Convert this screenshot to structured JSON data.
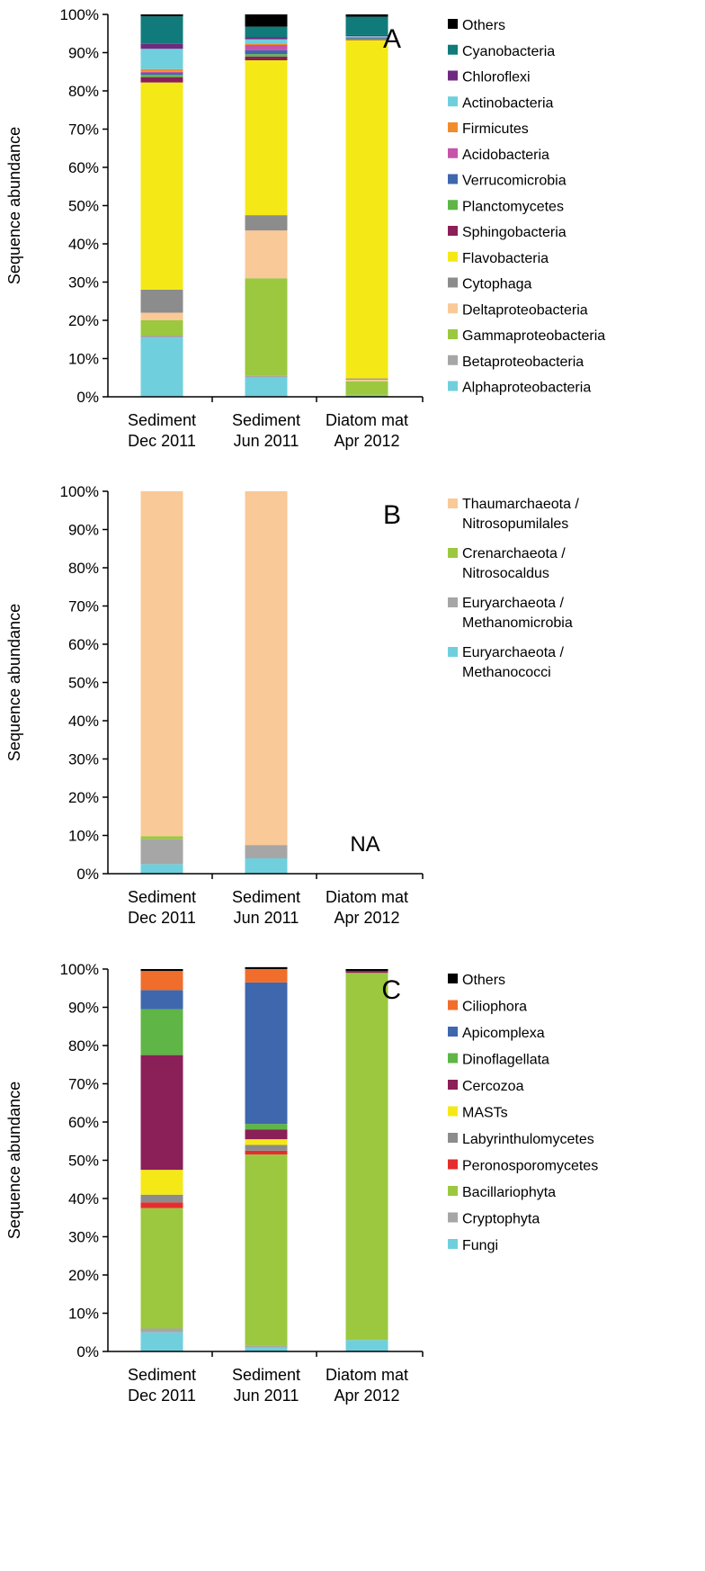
{
  "chart_data": [
    {
      "panel_id": "A",
      "type": "bar",
      "stacked": true,
      "ylabel": "Sequence abundance",
      "ylim": [
        0,
        100
      ],
      "y_ticks": [
        0,
        10,
        20,
        30,
        40,
        50,
        60,
        70,
        80,
        90,
        100
      ],
      "y_tick_suffix": "%",
      "categories": [
        [
          "Sediment",
          "Dec 2011"
        ],
        [
          "Sediment",
          "Jun 2011"
        ],
        [
          "Diatom mat",
          "Apr 2012"
        ]
      ],
      "series": [
        {
          "name": "Alphaproteobacteria",
          "color": "#6fcfdd",
          "values": [
            15.5,
            5,
            0.3
          ]
        },
        {
          "name": "Betaproteobacteria",
          "color": "#a6a6a6",
          "values": [
            0.5,
            0.5,
            0.2
          ]
        },
        {
          "name": "Gammaproteobacteria",
          "color": "#9bc83f",
          "values": [
            4,
            25.5,
            3.5
          ]
        },
        {
          "name": "Deltaproteobacteria",
          "color": "#f9c997",
          "values": [
            2,
            12.5,
            0.5
          ]
        },
        {
          "name": "Cytophaga",
          "color": "#8c8c8c",
          "values": [
            6,
            4,
            0.3
          ]
        },
        {
          "name": "Flavobacteria",
          "color": "#f4e917",
          "values": [
            54.2,
            40.5,
            88.5
          ]
        },
        {
          "name": "Sphingobacteria",
          "color": "#8b1f57",
          "values": [
            1.4,
            1,
            0.2
          ]
        },
        {
          "name": "Planctomycetes",
          "color": "#5fb546",
          "values": [
            0.6,
            0.6,
            0.2
          ]
        },
        {
          "name": "Verrucomicrobia",
          "color": "#3f67ad",
          "values": [
            0.5,
            1,
            0.2
          ]
        },
        {
          "name": "Acidobacteria",
          "color": "#c655a9",
          "values": [
            0.3,
            1.4,
            0.1
          ]
        },
        {
          "name": "Firmicutes",
          "color": "#f08c2c",
          "values": [
            0.7,
            0.4,
            0.1
          ]
        },
        {
          "name": "Actinobacteria",
          "color": "#6fcfdd",
          "values": [
            5.3,
            1.1,
            0.2
          ]
        },
        {
          "name": "Chloroflexi",
          "color": "#6f2a80",
          "values": [
            1.3,
            0.5,
            0.3
          ]
        },
        {
          "name": "Cyanobacteria",
          "color": "#117b7b",
          "values": [
            7.2,
            2.8,
            4.8
          ]
        },
        {
          "name": "Others",
          "color": "#000000",
          "values": [
            0.5,
            3.2,
            0.6
          ]
        }
      ]
    },
    {
      "panel_id": "B",
      "type": "bar",
      "stacked": true,
      "ylabel": "Sequence abundance",
      "ylim": [
        0,
        100
      ],
      "y_ticks": [
        0,
        10,
        20,
        30,
        40,
        50,
        60,
        70,
        80,
        90,
        100
      ],
      "y_tick_suffix": "%",
      "annotation": "NA",
      "categories": [
        [
          "Sediment",
          "Dec 2011"
        ],
        [
          "Sediment",
          "Jun 2011"
        ],
        [
          "Diatom mat",
          "Apr 2012"
        ]
      ],
      "series": [
        {
          "name": [
            "Euryarchaeota /",
            "Methanococci"
          ],
          "color": "#6fcfdd",
          "values": [
            2.5,
            4,
            0
          ]
        },
        {
          "name": [
            "Euryarchaeota /",
            "Methanomicrobia"
          ],
          "color": "#a6a6a6",
          "values": [
            6.5,
            3.5,
            0
          ]
        },
        {
          "name": [
            "Crenarchaeota /",
            "Nitrosocaldus"
          ],
          "color": "#9bc83f",
          "values": [
            0.8,
            0,
            0
          ]
        },
        {
          "name": [
            "Thaumarchaeota /",
            "Nitrosopumilales"
          ],
          "color": "#f9c997",
          "values": [
            90.2,
            92.5,
            0
          ]
        }
      ]
    },
    {
      "panel_id": "C",
      "type": "bar",
      "stacked": true,
      "ylabel": "Sequence abundance",
      "ylim": [
        0,
        100
      ],
      "y_ticks": [
        0,
        10,
        20,
        30,
        40,
        50,
        60,
        70,
        80,
        90,
        100
      ],
      "y_tick_suffix": "%",
      "categories": [
        [
          "Sediment",
          "Dec 2011"
        ],
        [
          "Sediment",
          "Jun 2011"
        ],
        [
          "Diatom mat",
          "Apr 2012"
        ]
      ],
      "series": [
        {
          "name": "Fungi",
          "color": "#6fcfdd",
          "values": [
            5,
            1,
            3
          ]
        },
        {
          "name": "Cryptophyta",
          "color": "#a6a6a6",
          "values": [
            1,
            0.5,
            0
          ]
        },
        {
          "name": "Bacillariophyta",
          "color": "#9bc83f",
          "values": [
            31.5,
            50,
            96
          ]
        },
        {
          "name": "Peronosporomycetes",
          "color": "#e52d2d",
          "values": [
            1.5,
            1,
            0
          ]
        },
        {
          "name": "Labyrinthulomycetes",
          "color": "#8c8c8c",
          "values": [
            2,
            1.5,
            0
          ]
        },
        {
          "name": "MASTs",
          "color": "#f4e917",
          "values": [
            6.5,
            1.5,
            0
          ]
        },
        {
          "name": "Cercozoa",
          "color": "#8b1f57",
          "values": [
            30,
            2.5,
            0.5
          ]
        },
        {
          "name": "Dinoflagellata",
          "color": "#5fb546",
          "values": [
            12,
            1.5,
            0
          ]
        },
        {
          "name": "Apicomplexa",
          "color": "#3f67ad",
          "values": [
            5,
            37,
            0
          ]
        },
        {
          "name": "Ciliophora",
          "color": "#f06d2c",
          "values": [
            5,
            3.5,
            0
          ]
        },
        {
          "name": "Others",
          "color": "#000000",
          "values": [
            0.5,
            0.5,
            0.5
          ]
        }
      ]
    }
  ]
}
